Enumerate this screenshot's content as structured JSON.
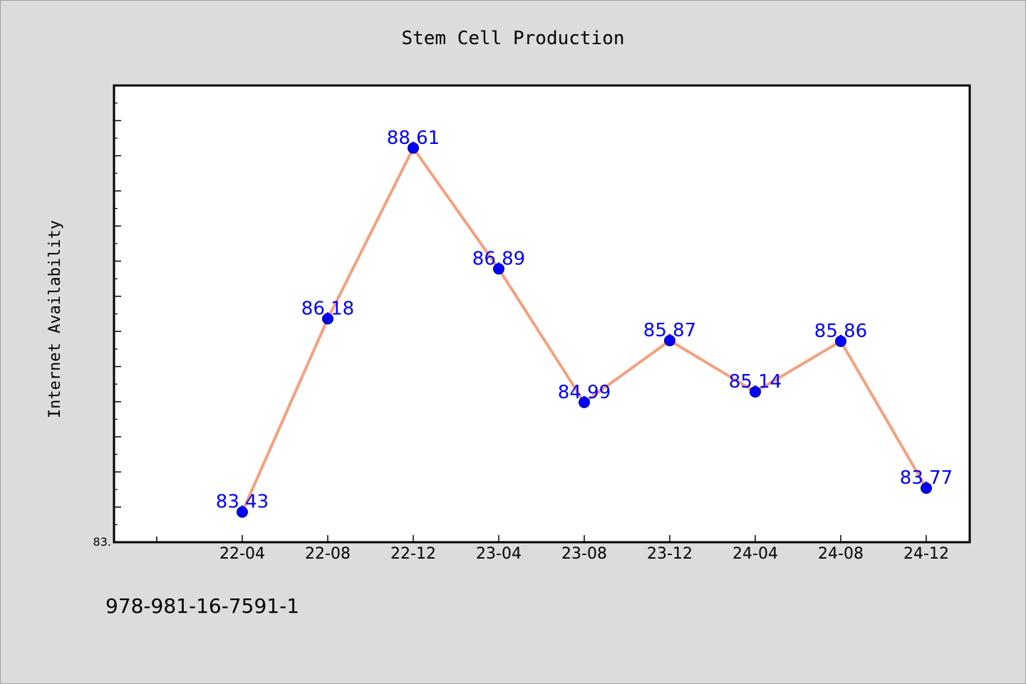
{
  "chart_data": {
    "type": "line",
    "title": "Stem Cell Production",
    "xlabel": "",
    "ylabel": "Internet Availability",
    "categories": [
      "22-04",
      "22-08",
      "22-12",
      "23-04",
      "23-08",
      "23-12",
      "24-04",
      "24-08",
      "24-12"
    ],
    "values": [
      83.43,
      86.18,
      88.61,
      86.89,
      84.99,
      85.87,
      85.14,
      85.86,
      83.77
    ],
    "value_labels": [
      "83.43",
      "86.18",
      "88.61",
      "86.89",
      "84.99",
      "85.87",
      "85.14",
      "85.86",
      "83.77"
    ],
    "ylim": [
      83.0,
      89.5
    ],
    "y_tick_label": "83.",
    "grid": false,
    "line_color": "#f4a07f",
    "marker_color": "#0000ff",
    "label_color": "#0000ff"
  },
  "footer_code": "978-981-16-7591-1"
}
